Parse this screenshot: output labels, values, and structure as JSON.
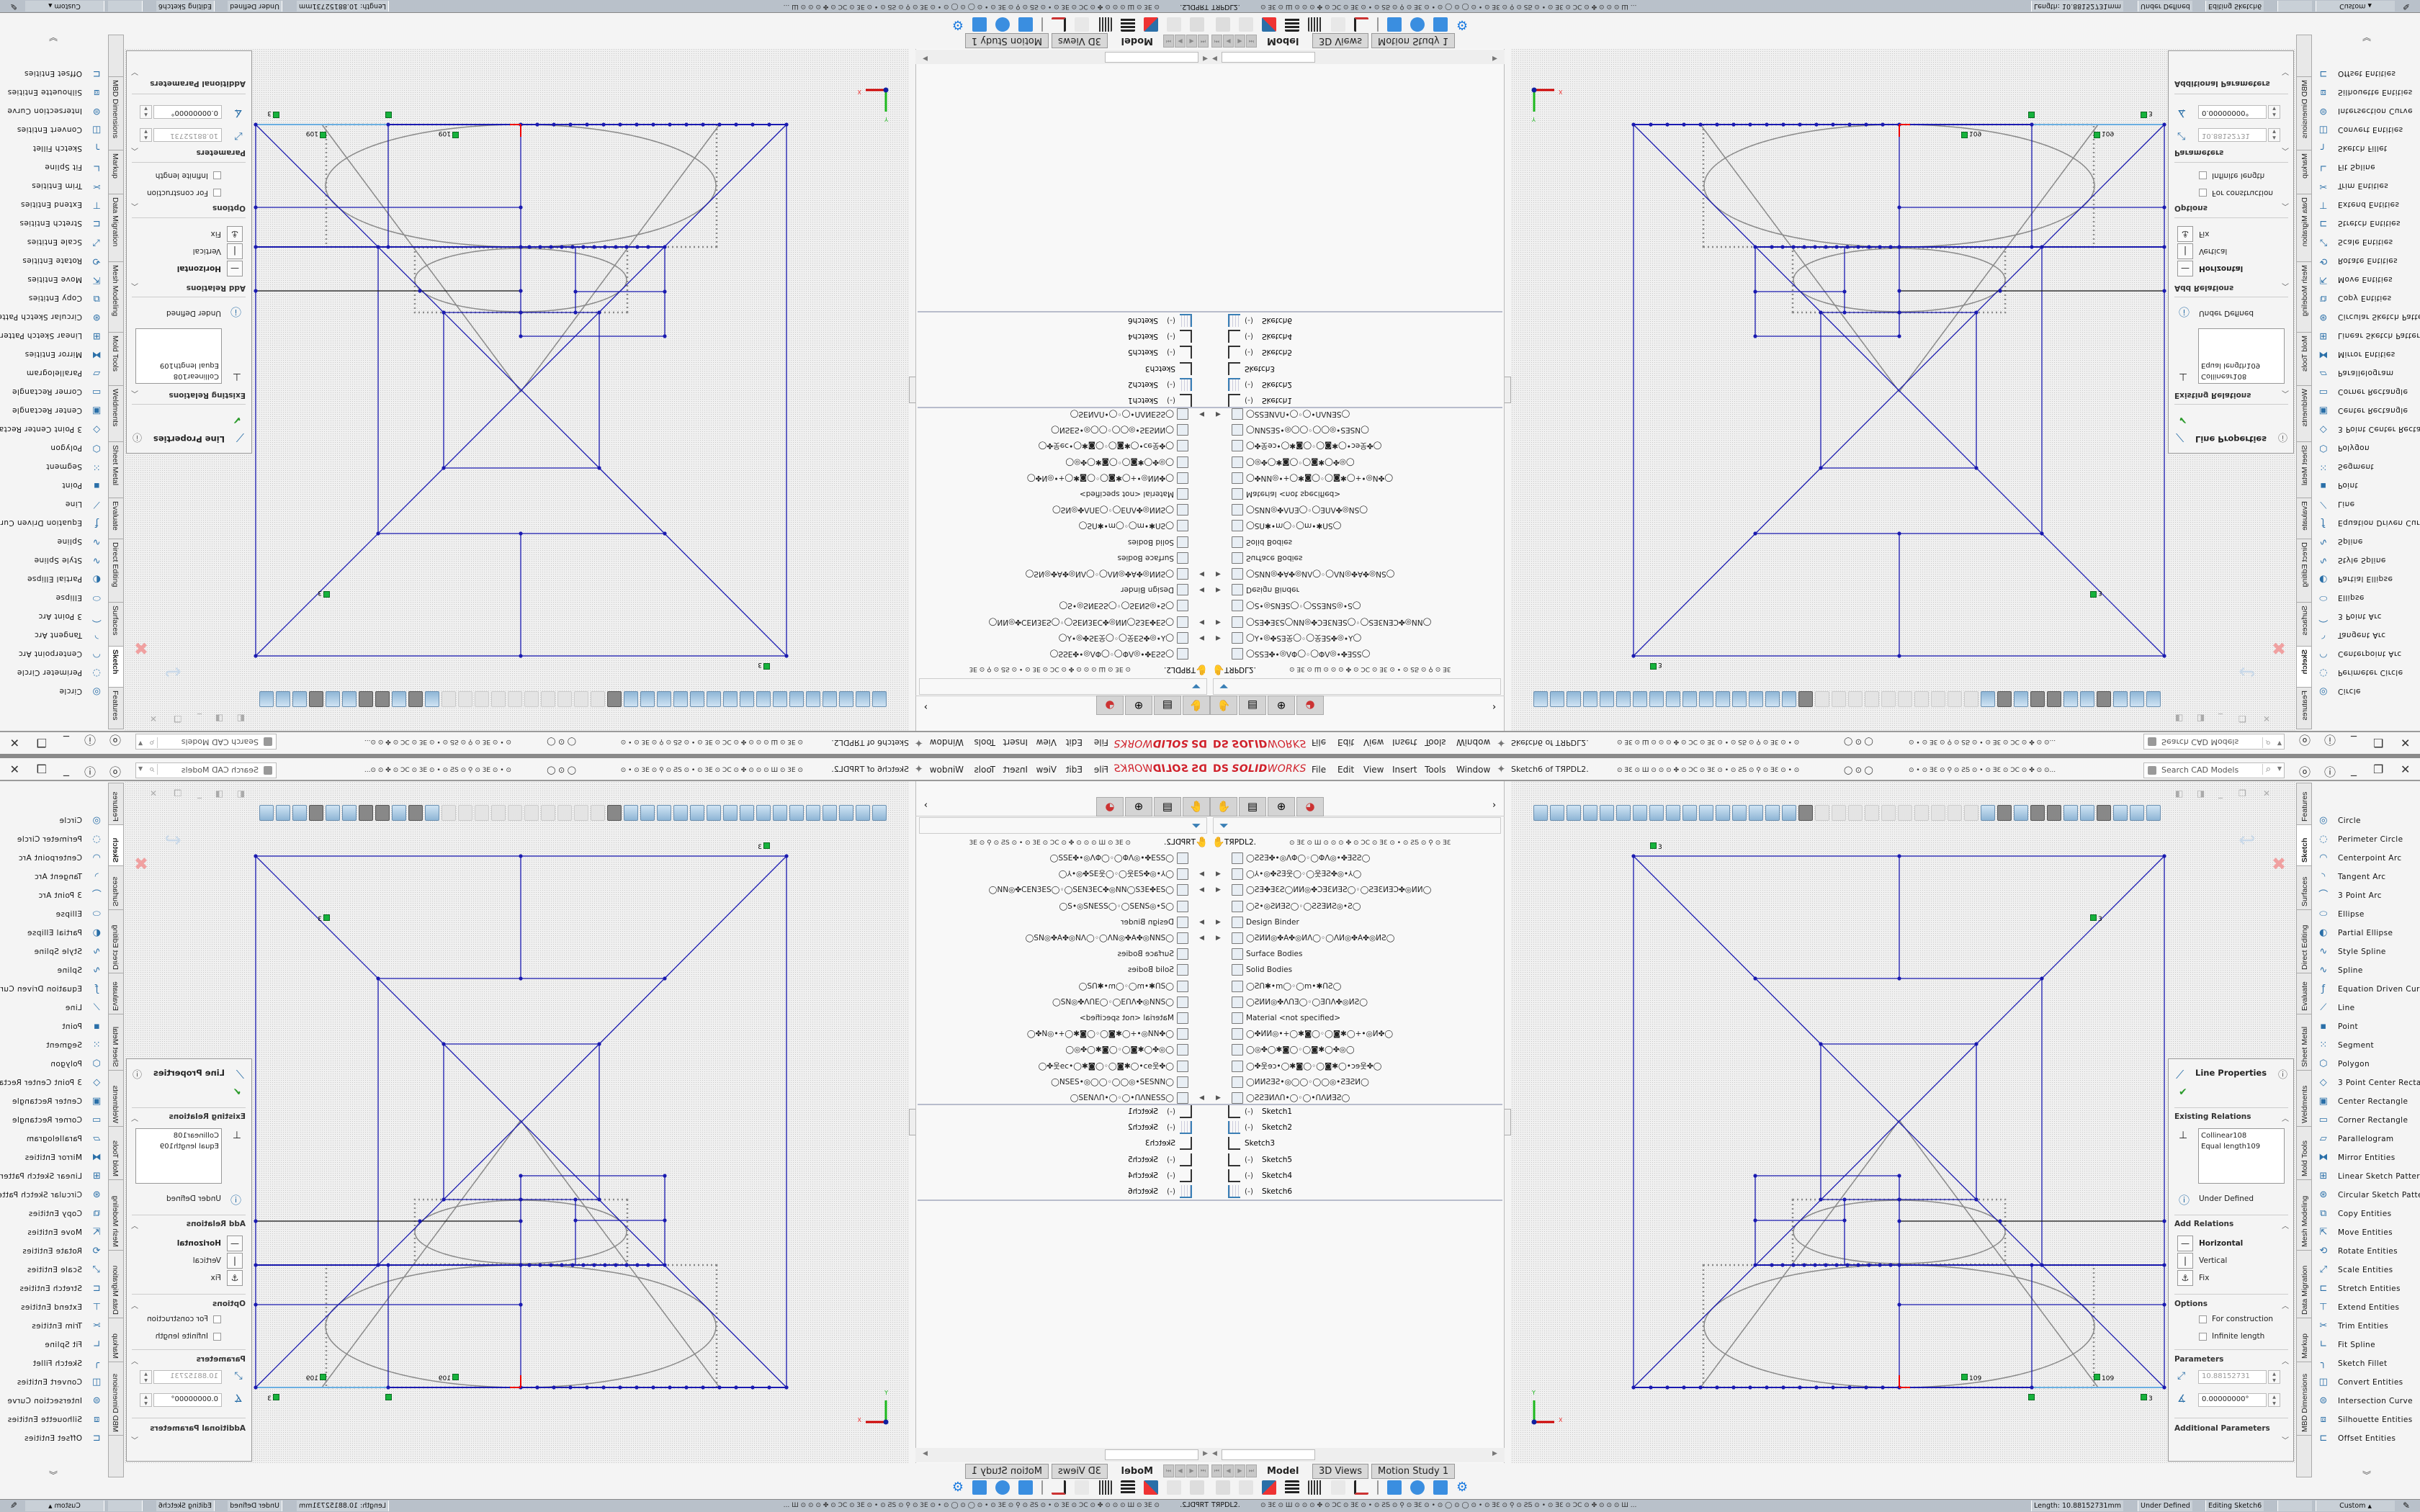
{
  "window": {
    "title": "Sketch6 of TЯPDL2.",
    "logo": {
      "ds": "DS",
      "solid": "SOLID",
      "works": "WORKS"
    },
    "menu": [
      "File",
      "Edit",
      "View",
      "Insert",
      "Tools",
      "Window"
    ],
    "title_glyphs_left": "⊙ ƎƐ ⊙ Ш ⊙ ⊙ ⊙ ✤ ⊙ ƆC ⊙ ƎƐ ⊙ • ⊙ ƧƼ ⊙ ⚲ ⊙ ƎƐ ⊙ • ⊙",
    "title_glyphs_mid": "◯   ⊙   ◯",
    "title_glyphs_right": "⊙ • ⊙ ƎƐ ⊙ ⚲ ⊙ ƧƼ ⊙ • ⊙ ƎƐ ⊙ ƆC ⊙ ✤ ⊙ ⊙...",
    "search_placeholder": "Search CAD Models",
    "controls": [
      "user-icon",
      "help-icon",
      "minimize-icon",
      "restore-icon",
      "close-icon"
    ]
  },
  "feature_manager": {
    "tabs": [
      "feature-tree-icon",
      "property-manager-icon",
      "configuration-manager-icon",
      "display-manager-icon"
    ],
    "root": "TЯPDL2.",
    "root_glyphs": "⊙ ƎƐ ⊙ Ш ⊙ ⊙ ⊙ ✤ ⊙ ƆC ⊙ ƎƐ ⊙ • ⊙ ƧƼ ⊙ ⚲ ⊙ ƎƐ",
    "items": [
      {
        "label": "◯ƧƧƎ✤•◎ΛΦ◯◦◯ΦΛ◎•✤ƎƧƧ◯",
        "arrow": false
      },
      {
        "label": "◯⅄•◎✤ƧƎ웃◯◦◯웃ƎƧ✤◎•⅄◯",
        "arrow": true
      },
      {
        "label": "◯ƧƎ✤ƎƐƧ◯ИИ◎✤ƆƎƐИƎƧ◯◦◯ƧƎƐИƎƆ✤◎ИИ◯",
        "arrow": true
      },
      {
        "label": "◯Ƨ•◎ƧИƎƧ◯◦◯ƧƧƎИƧ◎•Ƨ◯",
        "arrow": false
      },
      {
        "label": "Design Binder",
        "arrow": true
      },
      {
        "label": "◯ƧИИ◎✤A✤◎ИΛ◯◦◯ΛИ◎✤A✤◎ИƧ◯",
        "arrow": true
      },
      {
        "label": "Surface Bodies",
        "arrow": false
      },
      {
        "label": "Solid Bodies",
        "arrow": false
      },
      {
        "label": "◯ƧՈ✱•m◯◦◯m•✱ՈƧ◯",
        "arrow": false
      },
      {
        "label": "◯ƧИИ◎✤ΛՈƎ◯◦◯ƎՈΛ✤◎ИƧ◯",
        "arrow": false
      },
      {
        "label": "Material <not specified>",
        "arrow": false
      },
      {
        "label": "◯✤ИИ◎•+◯✱◙◯◦◯◙✱◯+•◎И✤◯",
        "arrow": false
      },
      {
        "label": "◯◎✤◯✱◙◯◦◯◙✱◯✤◎◯",
        "arrow": false
      },
      {
        "label": "◯✤웃ɘɔ•◯✱◙◯◦◯◙✱◯•ɔɘ웃✤◯",
        "arrow": false
      },
      {
        "label": "◯ИИƧƎƧ•◎◯◯◦◯◯◎•ƧƎƧИ◯",
        "arrow": false
      },
      {
        "label": "◯ƧƧƎИΛՈ•◯◦◯•ՈΛИƎƧ◯",
        "arrow": true
      }
    ],
    "sketches": [
      {
        "label": "Sketch1",
        "minus": "(-)",
        "grid": false
      },
      {
        "label": "Sketch2",
        "minus": "(-)",
        "grid": true
      },
      {
        "label": "Sketch3",
        "minus": "",
        "grid": false
      },
      {
        "label": "Sketch5",
        "minus": "(-)",
        "grid": false
      },
      {
        "label": "Sketch4",
        "minus": "(-)",
        "grid": false
      },
      {
        "label": "Sketch6",
        "minus": "(-)",
        "grid": true
      }
    ]
  },
  "graphics": {
    "relation_badges": [
      "3",
      "3",
      "109",
      "109",
      "3"
    ],
    "triad": {
      "x": "X",
      "y": "Y"
    }
  },
  "line_properties": {
    "title": "Line Properties",
    "existing_relations": {
      "header": "Existing Relations",
      "items": [
        "Collinear108",
        "Equal length109"
      ]
    },
    "status": "Under Defined",
    "add_relations": {
      "header": "Add Relations",
      "items": [
        "Horizontal",
        "Vertical",
        "Fix"
      ]
    },
    "options": {
      "header": "Options",
      "for_construction": "For construction",
      "infinite_length": "Infinite length",
      "for_construction_checked": false,
      "infinite_length_checked": false
    },
    "parameters": {
      "header": "Parameters",
      "length": "10.88152731",
      "angle": "0.00000000°"
    },
    "additional_parameters": "Additional Parameters"
  },
  "command_tabs": [
    "Features",
    "Sketch",
    "Surfaces",
    "Direct Editing",
    "Evaluate",
    "Sheet Metal",
    "Weldments",
    "Mold Tools",
    "Mesh Modeling",
    "Data Migration",
    "Markup",
    "MBD Dimensions"
  ],
  "active_command_tab": "Sketch",
  "sketch_commands": [
    "Circle",
    "Perimeter Circle",
    "Centerpoint Arc",
    "Tangent Arc",
    "3 Point Arc",
    "Ellipse",
    "Partial Ellipse",
    "Style Spline",
    "Spline",
    "Equation Driven Curve",
    "Line",
    "Point",
    "Segment",
    "Polygon",
    "3 Point Center Recta...",
    "Center Rectangle",
    "Corner Rectangle",
    "Parallelogram",
    "Mirror Entities",
    "Linear Sketch Pattern",
    "Circular Sketch Pattern",
    "Copy Entities",
    "Move Entities",
    "Rotate Entities",
    "Scale Entities",
    "Stretch Entities",
    "Extend Entities",
    "Trim Entities",
    "Fit Spline",
    "Sketch Fillet",
    "Convert Entities",
    "Intersection Curve",
    "Silhouette Entities",
    "Offset Entities"
  ],
  "bottom_tabs": [
    "Model",
    "3D Views",
    "Motion Study 1"
  ],
  "active_bottom_tab": "Model",
  "status_bar": {
    "doc": "TЯPDL2.",
    "glyphs": "⊙ ƎƐ ⊙ Ш ⊙ ⊙ ⊙ ✤ ⊙ ƆC ⊙ ƎƐ ⊙ • ⊙ ƧƼ ⊙ ⚲ ⊙ ƎƐ ⊙ • ⊙      ◯      ⊙      ◯      ⊙ • ⊙ ƎƐ ⊙ ⚲ ⊙ ƧƼ ⊙ • ⊙ ƎƐ ⊙ ƆC ⊙ ✤ ⊙ ⊙ ⊙ Ш ...",
    "length": "Length: 10.88152731mm",
    "definition": "Under Defined",
    "editing": "Editing Sketch6",
    "units": "Custom",
    "units_arrow": "▲"
  },
  "colors": {
    "sketch_line": "#1a1ab0",
    "construction": "#8a8a8a",
    "selected": "#6aaee0",
    "relation_badge": "#16b23c",
    "brand": "#d0202a"
  }
}
